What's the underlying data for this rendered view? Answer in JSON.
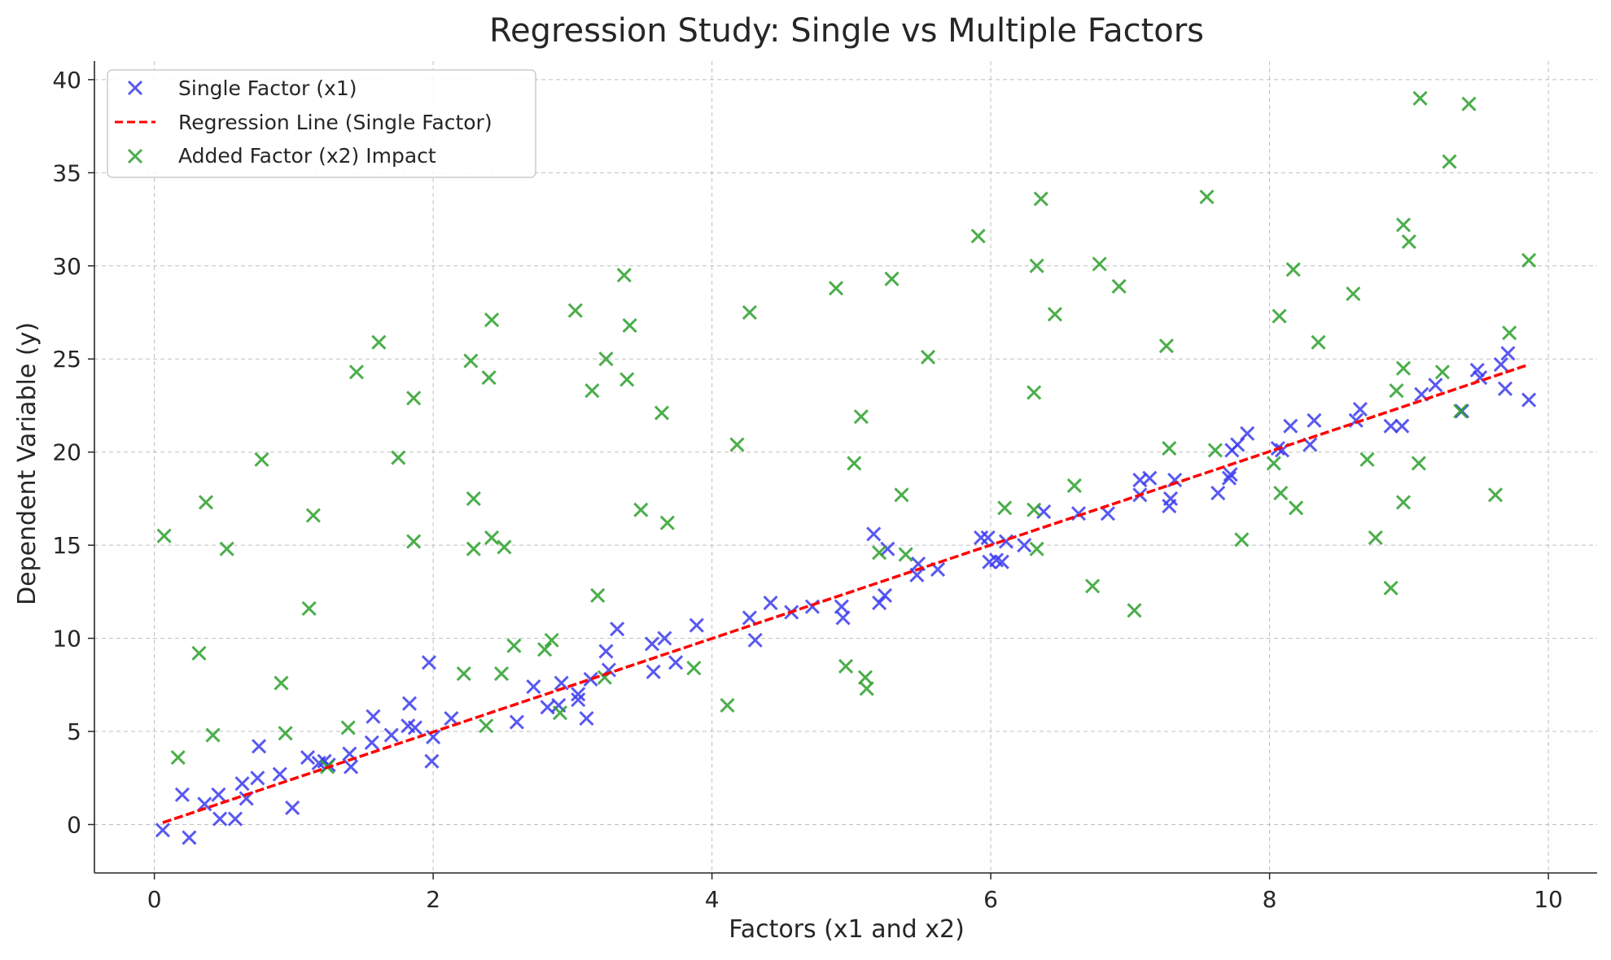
{
  "chart_data": {
    "type": "scatter",
    "title": "Regression Study: Single vs Multiple Factors",
    "xlabel": "Factors (x1 and x2)",
    "ylabel": "Dependent Variable (y)",
    "xlim": [
      -0.43,
      10.35
    ],
    "ylim": [
      -2.6,
      41.0
    ],
    "xticks": [
      0,
      2,
      4,
      6,
      8,
      10
    ],
    "yticks": [
      0,
      5,
      10,
      15,
      20,
      25,
      30,
      35,
      40
    ],
    "grid": true,
    "legend_position": "top-left",
    "series": [
      {
        "name": "Single Factor (x1)",
        "kind": "scatter",
        "marker": "x",
        "color": "#3b3bf0",
        "points": [
          [
            0.06,
            -0.3
          ],
          [
            0.2,
            1.6
          ],
          [
            0.25,
            -0.7
          ],
          [
            0.36,
            1.1
          ],
          [
            0.46,
            1.6
          ],
          [
            0.47,
            0.3
          ],
          [
            0.58,
            0.3
          ],
          [
            0.63,
            2.2
          ],
          [
            0.66,
            1.4
          ],
          [
            0.74,
            2.5
          ],
          [
            0.75,
            4.2
          ],
          [
            0.9,
            2.7
          ],
          [
            0.99,
            0.9
          ],
          [
            1.1,
            3.6
          ],
          [
            1.18,
            3.3
          ],
          [
            1.22,
            3.4
          ],
          [
            1.25,
            3.2
          ],
          [
            1.4,
            3.8
          ],
          [
            1.41,
            3.1
          ],
          [
            1.56,
            4.4
          ],
          [
            1.57,
            5.8
          ],
          [
            1.7,
            4.8
          ],
          [
            1.82,
            5.3
          ],
          [
            1.83,
            6.5
          ],
          [
            1.87,
            5.2
          ],
          [
            1.97,
            8.7
          ],
          [
            1.99,
            3.4
          ],
          [
            2.0,
            4.7
          ],
          [
            2.13,
            5.7
          ],
          [
            2.6,
            5.5
          ],
          [
            2.72,
            7.4
          ],
          [
            2.82,
            6.3
          ],
          [
            2.9,
            6.4
          ],
          [
            2.92,
            7.6
          ],
          [
            3.04,
            7.0
          ],
          [
            3.04,
            6.7
          ],
          [
            3.1,
            5.7
          ],
          [
            3.13,
            7.8
          ],
          [
            3.24,
            9.3
          ],
          [
            3.26,
            8.3
          ],
          [
            3.32,
            10.5
          ],
          [
            3.57,
            9.7
          ],
          [
            3.58,
            8.2
          ],
          [
            3.66,
            10.0
          ],
          [
            3.74,
            8.7
          ],
          [
            3.89,
            10.7
          ],
          [
            4.27,
            11.1
          ],
          [
            4.31,
            9.9
          ],
          [
            4.42,
            11.9
          ],
          [
            4.57,
            11.4
          ],
          [
            4.72,
            11.7
          ],
          [
            4.93,
            11.7
          ],
          [
            4.94,
            11.1
          ],
          [
            5.16,
            15.6
          ],
          [
            5.2,
            11.9
          ],
          [
            5.24,
            12.3
          ],
          [
            5.26,
            14.8
          ],
          [
            5.47,
            13.4
          ],
          [
            5.48,
            14.0
          ],
          [
            5.62,
            13.7
          ],
          [
            5.93,
            15.4
          ],
          [
            5.98,
            15.4
          ],
          [
            5.99,
            14.1
          ],
          [
            6.04,
            14.2
          ],
          [
            6.08,
            14.1
          ],
          [
            6.11,
            15.2
          ],
          [
            6.24,
            15.0
          ],
          [
            6.38,
            16.8
          ],
          [
            6.63,
            16.7
          ],
          [
            6.84,
            16.7
          ],
          [
            7.07,
            18.5
          ],
          [
            7.07,
            17.7
          ],
          [
            7.14,
            18.6
          ],
          [
            7.28,
            17.1
          ],
          [
            7.29,
            17.5
          ],
          [
            7.32,
            18.5
          ],
          [
            7.63,
            17.8
          ],
          [
            7.71,
            18.6
          ],
          [
            7.72,
            18.8
          ],
          [
            7.73,
            20.1
          ],
          [
            7.77,
            20.4
          ],
          [
            7.84,
            21.0
          ],
          [
            8.06,
            20.2
          ],
          [
            8.09,
            20.1
          ],
          [
            8.15,
            21.4
          ],
          [
            8.29,
            20.4
          ],
          [
            8.32,
            21.7
          ],
          [
            8.62,
            21.7
          ],
          [
            8.65,
            22.3
          ],
          [
            8.87,
            21.4
          ],
          [
            8.95,
            21.4
          ],
          [
            9.09,
            23.1
          ],
          [
            9.19,
            23.6
          ],
          [
            9.38,
            22.2
          ],
          [
            9.49,
            24.4
          ],
          [
            9.51,
            24.0
          ],
          [
            9.66,
            24.7
          ],
          [
            9.71,
            25.3
          ],
          [
            9.69,
            23.4
          ],
          [
            9.86,
            22.8
          ]
        ]
      },
      {
        "name": "Regression Line (Single Factor)",
        "kind": "line",
        "style": "dashed",
        "color": "#ff0000",
        "x": [
          0.06,
          9.86
        ],
        "y": [
          0.1,
          24.7
        ]
      },
      {
        "name": "Added Factor (x2) Impact",
        "kind": "scatter",
        "marker": "x",
        "color": "#2ca02c",
        "points": [
          [
            0.07,
            15.5
          ],
          [
            0.17,
            3.6
          ],
          [
            0.32,
            9.2
          ],
          [
            0.37,
            17.3
          ],
          [
            0.42,
            4.8
          ],
          [
            0.52,
            14.8
          ],
          [
            0.77,
            19.6
          ],
          [
            0.91,
            7.6
          ],
          [
            0.94,
            4.9
          ],
          [
            1.11,
            11.6
          ],
          [
            1.14,
            16.6
          ],
          [
            1.24,
            3.1
          ],
          [
            1.39,
            5.2
          ],
          [
            1.45,
            24.3
          ],
          [
            1.61,
            25.9
          ],
          [
            1.75,
            19.7
          ],
          [
            1.86,
            22.9
          ],
          [
            1.86,
            15.2
          ],
          [
            2.22,
            8.1
          ],
          [
            2.27,
            24.9
          ],
          [
            2.29,
            14.8
          ],
          [
            2.29,
            17.5
          ],
          [
            2.38,
            5.3
          ],
          [
            2.4,
            24.0
          ],
          [
            2.42,
            27.1
          ],
          [
            2.42,
            15.4
          ],
          [
            2.49,
            8.1
          ],
          [
            2.51,
            14.9
          ],
          [
            2.58,
            9.6
          ],
          [
            2.8,
            9.4
          ],
          [
            2.85,
            9.9
          ],
          [
            2.91,
            6.0
          ],
          [
            3.02,
            27.6
          ],
          [
            3.14,
            23.3
          ],
          [
            3.18,
            12.3
          ],
          [
            3.23,
            7.9
          ],
          [
            3.24,
            25.0
          ],
          [
            3.37,
            29.5
          ],
          [
            3.39,
            23.9
          ],
          [
            3.41,
            26.8
          ],
          [
            3.49,
            16.9
          ],
          [
            3.64,
            22.1
          ],
          [
            3.68,
            16.2
          ],
          [
            3.87,
            8.4
          ],
          [
            4.11,
            6.4
          ],
          [
            4.18,
            20.4
          ],
          [
            4.27,
            27.5
          ],
          [
            4.89,
            28.8
          ],
          [
            4.96,
            8.5
          ],
          [
            5.02,
            19.4
          ],
          [
            5.07,
            21.9
          ],
          [
            5.1,
            7.9
          ],
          [
            5.11,
            7.3
          ],
          [
            5.2,
            14.6
          ],
          [
            5.29,
            29.3
          ],
          [
            5.36,
            17.7
          ],
          [
            5.39,
            14.5
          ],
          [
            5.55,
            25.1
          ],
          [
            5.91,
            31.6
          ],
          [
            6.1,
            17.0
          ],
          [
            6.31,
            23.2
          ],
          [
            6.31,
            16.9
          ],
          [
            6.33,
            30.0
          ],
          [
            6.33,
            14.8
          ],
          [
            6.36,
            33.6
          ],
          [
            6.46,
            27.4
          ],
          [
            6.6,
            18.2
          ],
          [
            6.73,
            12.8
          ],
          [
            6.78,
            30.1
          ],
          [
            6.92,
            28.9
          ],
          [
            7.03,
            11.5
          ],
          [
            7.26,
            25.7
          ],
          [
            7.28,
            20.2
          ],
          [
            7.55,
            33.7
          ],
          [
            7.61,
            20.1
          ],
          [
            7.8,
            15.3
          ],
          [
            8.03,
            19.4
          ],
          [
            8.07,
            27.3
          ],
          [
            8.08,
            17.8
          ],
          [
            8.17,
            29.8
          ],
          [
            8.19,
            17.0
          ],
          [
            8.35,
            25.9
          ],
          [
            8.6,
            28.5
          ],
          [
            8.7,
            19.6
          ],
          [
            8.76,
            15.4
          ],
          [
            8.87,
            12.7
          ],
          [
            8.91,
            23.3
          ],
          [
            8.96,
            17.3
          ],
          [
            8.96,
            24.5
          ],
          [
            8.96,
            32.2
          ],
          [
            9.0,
            31.3
          ],
          [
            9.07,
            19.4
          ],
          [
            9.08,
            39.0
          ],
          [
            9.24,
            24.3
          ],
          [
            9.29,
            35.6
          ],
          [
            9.37,
            22.2
          ],
          [
            9.43,
            38.7
          ],
          [
            9.62,
            17.7
          ],
          [
            9.72,
            26.4
          ],
          [
            9.86,
            30.3
          ]
        ]
      }
    ]
  }
}
